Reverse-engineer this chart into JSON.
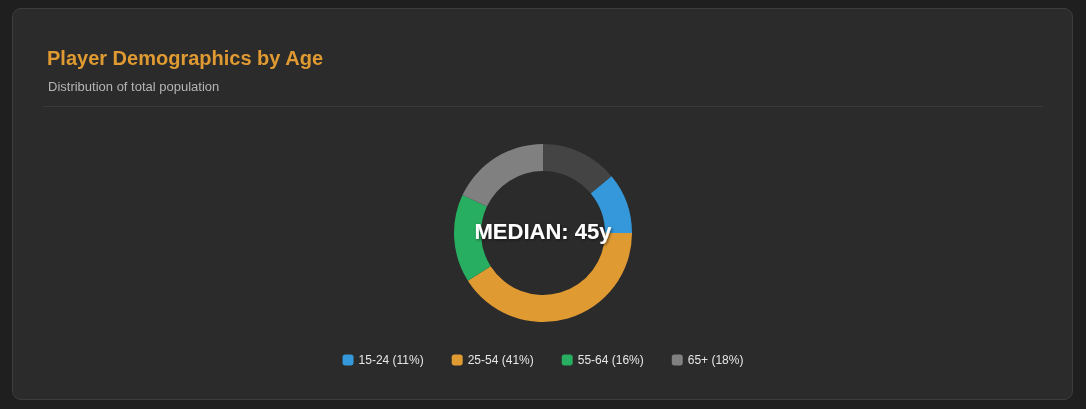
{
  "chart_data": {
    "type": "donut",
    "title": "Player Demographics by Age",
    "subtitle": "Distribution of total population",
    "annotations": [
      "MEDIAN: 45y"
    ],
    "categories": [
      null,
      "15-24 (11%)",
      "25-54 (41%)",
      "55-64 (16%)",
      "65+ (18%)"
    ],
    "values": [
      14,
      11,
      41,
      16,
      18
    ],
    "colors": [
      "#444444",
      "#3498db",
      "#e09a32",
      "#27ae60",
      "#808080"
    ],
    "legend": "bottom"
  }
}
